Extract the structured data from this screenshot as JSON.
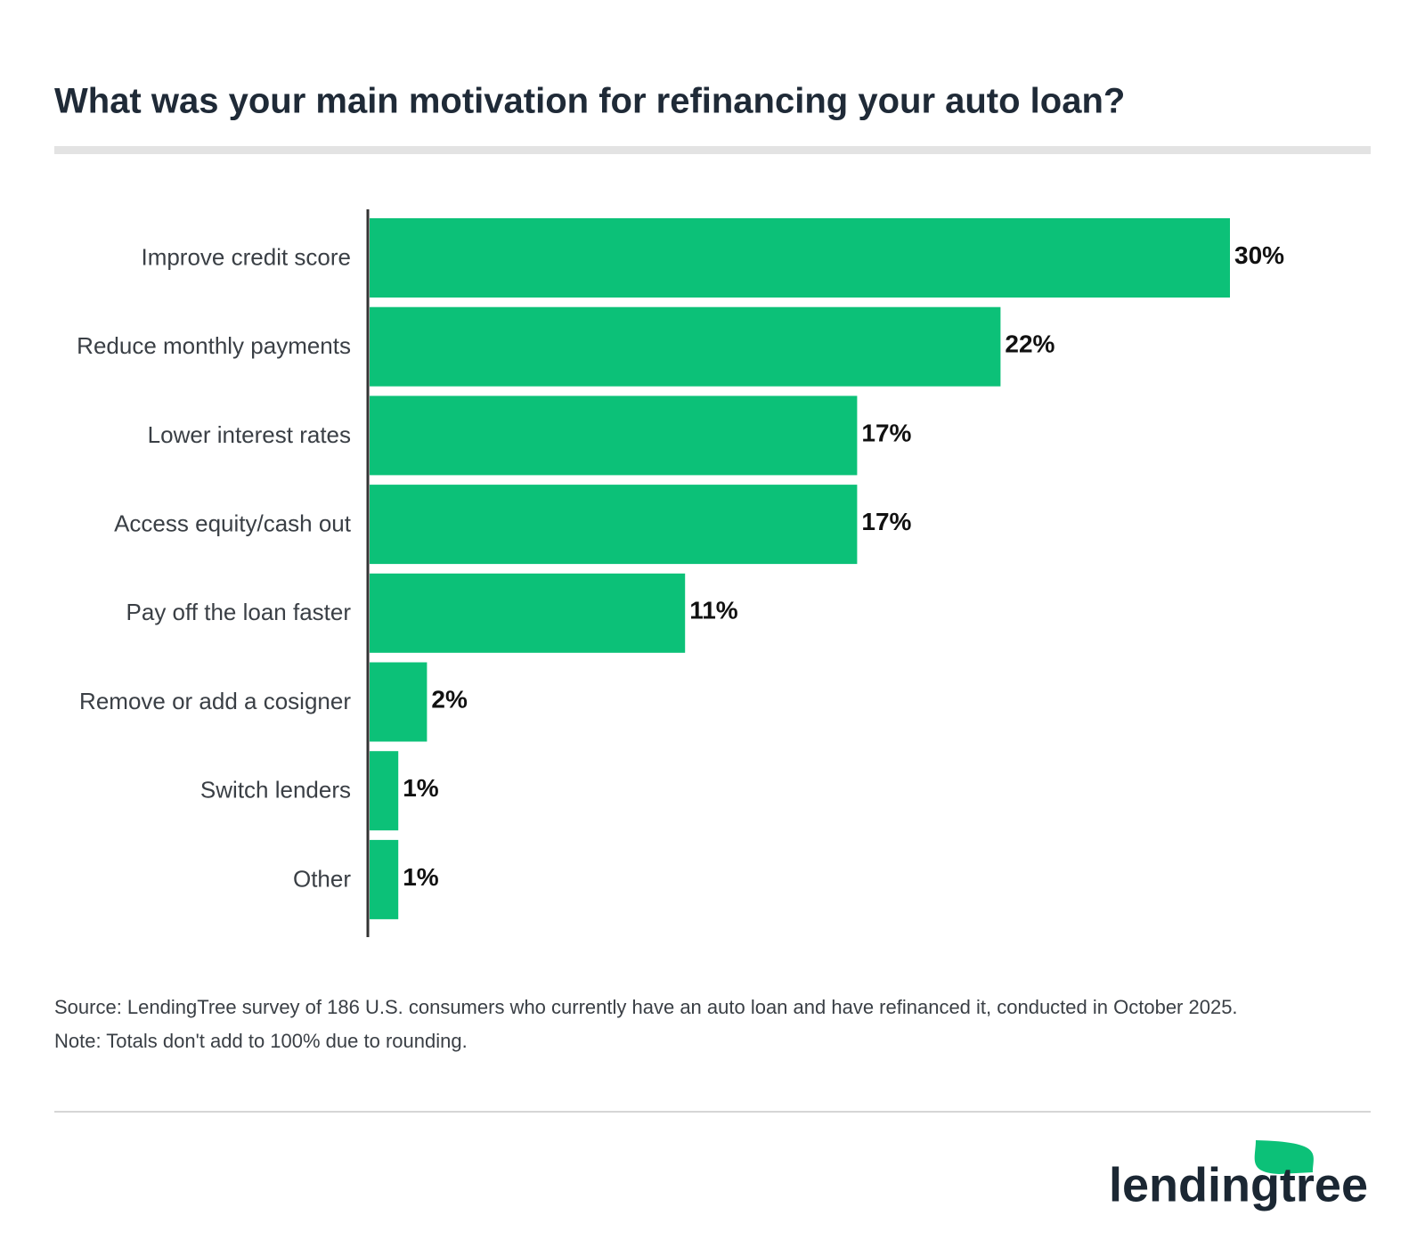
{
  "chart_data": {
    "type": "bar",
    "orientation": "horizontal",
    "title": "What was your main motivation for refinancing your auto loan?",
    "categories": [
      "Improve credit score",
      "Reduce monthly payments",
      "Lower interest rates",
      "Access equity/cash out",
      "Pay off the loan faster",
      "Remove or add a cosigner",
      "Switch lenders",
      "Other"
    ],
    "values": [
      30,
      22,
      17,
      17,
      11,
      2,
      1,
      1
    ],
    "value_labels": [
      "30%",
      "22%",
      "17%",
      "17%",
      "11%",
      "2%",
      "1%",
      "1%"
    ],
    "color": "#0cc178"
  },
  "footer": {
    "source": "Source: LendingTree survey of 186 U.S. consumers who currently have an auto loan and have refinanced it, conducted in October 2025.",
    "note": "Note: Totals don't add to 100% due to rounding.",
    "logo": "lendingtree"
  }
}
